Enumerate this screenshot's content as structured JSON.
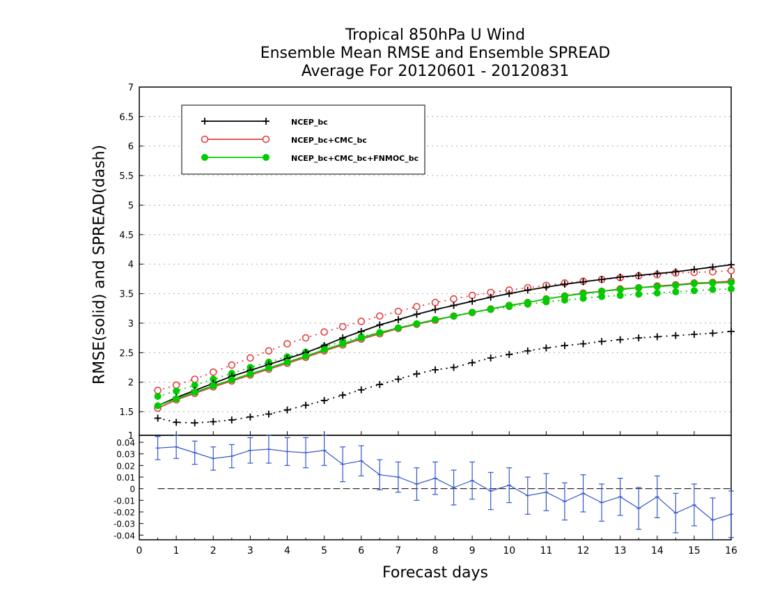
{
  "chart_data": {
    "type": "line",
    "title": [
      "Tropical 850hPa U Wind",
      "Ensemble Mean RMSE and Ensemble SPREAD",
      "Average For 20120601 - 20120831"
    ],
    "xlabel": "Forecast days",
    "ylabel": "RMSE(solid) and SPREAD(dash)",
    "xlim": [
      0,
      16
    ],
    "x_ticks": [
      "0",
      "1",
      "2",
      "3",
      "4",
      "5",
      "6",
      "7",
      "8",
      "9",
      "10",
      "11",
      "12",
      "13",
      "14",
      "15",
      "16"
    ],
    "grid": true,
    "legend_placement": "top-left",
    "x": [
      0.5,
      1,
      1.5,
      2,
      2.5,
      3,
      3.5,
      4,
      4.5,
      5,
      5.5,
      6,
      6.5,
      7,
      7.5,
      8,
      8.5,
      9,
      9.5,
      10,
      10.5,
      11,
      11.5,
      12,
      12.5,
      13,
      13.5,
      14,
      14.5,
      15,
      15.5,
      16
    ],
    "main_panel": {
      "ylim": [
        1.1,
        7
      ],
      "y_ticks": [
        "1.5",
        "2",
        "2.5",
        "3",
        "3.5",
        "4",
        "4.5",
        "5",
        "5.5",
        "6",
        "6.5",
        "7"
      ],
      "series": [
        {
          "name": "NCEP_bc",
          "style": "solid",
          "color": "#000000",
          "marker": "plus",
          "values": [
            1.6,
            1.74,
            1.86,
            1.98,
            2.1,
            2.2,
            2.3,
            2.4,
            2.5,
            2.62,
            2.75,
            2.86,
            2.97,
            3.06,
            3.15,
            3.23,
            3.3,
            3.37,
            3.44,
            3.5,
            3.56,
            3.61,
            3.66,
            3.7,
            3.74,
            3.78,
            3.81,
            3.84,
            3.87,
            3.91,
            3.95,
            3.99
          ]
        },
        {
          "name": "NCEP_bc+CMC_bc",
          "style": "solid",
          "color": "#e04040",
          "marker": "open-circle",
          "values": [
            1.56,
            1.7,
            1.81,
            1.92,
            2.02,
            2.12,
            2.22,
            2.32,
            2.42,
            2.53,
            2.63,
            2.73,
            2.82,
            2.91,
            2.98,
            3.05,
            3.12,
            3.18,
            3.24,
            3.3,
            3.35,
            3.41,
            3.46,
            3.51,
            3.54,
            3.58,
            3.6,
            3.63,
            3.65,
            3.68,
            3.69,
            3.71
          ]
        },
        {
          "name": "NCEP_bc+CMC_bc+FNMOC_bc",
          "style": "solid",
          "color": "#00cc00",
          "marker": "filled-circle",
          "values": [
            1.6,
            1.72,
            1.83,
            1.94,
            2.04,
            2.14,
            2.24,
            2.34,
            2.44,
            2.55,
            2.65,
            2.75,
            2.84,
            2.92,
            2.99,
            3.06,
            3.12,
            3.18,
            3.24,
            3.3,
            3.35,
            3.41,
            3.46,
            3.5,
            3.54,
            3.57,
            3.6,
            3.62,
            3.64,
            3.67,
            3.68,
            3.69
          ]
        },
        {
          "name": "NCEP_bc spread",
          "style": "dotted",
          "color": "#000000",
          "marker": "plus",
          "values": [
            1.39,
            1.32,
            1.31,
            1.33,
            1.36,
            1.41,
            1.46,
            1.53,
            1.61,
            1.69,
            1.78,
            1.87,
            1.96,
            2.05,
            2.14,
            2.21,
            2.25,
            2.33,
            2.41,
            2.47,
            2.53,
            2.58,
            2.62,
            2.65,
            2.69,
            2.72,
            2.75,
            2.77,
            2.79,
            2.81,
            2.83,
            2.86
          ]
        },
        {
          "name": "NCEP_bc+CMC_bc spread",
          "style": "dotted",
          "color": "#e04040",
          "marker": "open-circle",
          "values": [
            1.86,
            1.95,
            2.05,
            2.17,
            2.29,
            2.41,
            2.53,
            2.65,
            2.75,
            2.85,
            2.94,
            3.03,
            3.12,
            3.2,
            3.28,
            3.35,
            3.41,
            3.47,
            3.52,
            3.56,
            3.6,
            3.64,
            3.68,
            3.71,
            3.74,
            3.77,
            3.8,
            3.82,
            3.85,
            3.86,
            3.87,
            3.89
          ]
        },
        {
          "name": "NCEP_bc+CMC_bc+FNMOC_bc spread",
          "style": "dotted",
          "color": "#00cc00",
          "marker": "filled-circle",
          "values": [
            1.76,
            1.85,
            1.95,
            2.05,
            2.15,
            2.25,
            2.34,
            2.43,
            2.51,
            2.6,
            2.69,
            2.77,
            2.84,
            2.92,
            2.99,
            3.06,
            3.12,
            3.18,
            3.23,
            3.28,
            3.32,
            3.36,
            3.39,
            3.42,
            3.45,
            3.47,
            3.49,
            3.51,
            3.53,
            3.55,
            3.57,
            3.58
          ]
        }
      ]
    },
    "difference_panel": {
      "ylim": [
        -0.044,
        0.046
      ],
      "y_ticks": [
        "-0.04",
        "-0.03",
        "-0.02",
        "-0.01",
        "0",
        "0.01",
        "0.02",
        "0.03",
        "0.04"
      ],
      "top_label": "1",
      "color": "#3355cc",
      "values": [
        0.035,
        0.036,
        0.031,
        0.026,
        0.028,
        0.033,
        0.034,
        0.032,
        0.031,
        0.033,
        0.021,
        0.024,
        0.012,
        0.01,
        0.004,
        0.009,
        0.001,
        0.007,
        -0.002,
        0.003,
        -0.006,
        -0.003,
        -0.011,
        -0.004,
        -0.012,
        -0.007,
        -0.017,
        -0.007,
        -0.021,
        -0.014,
        -0.027,
        -0.022
      ],
      "errors": [
        0.01,
        0.01,
        0.01,
        0.01,
        0.01,
        0.011,
        0.012,
        0.012,
        0.013,
        0.013,
        0.015,
        0.013,
        0.013,
        0.013,
        0.014,
        0.014,
        0.015,
        0.016,
        0.016,
        0.015,
        0.016,
        0.016,
        0.016,
        0.016,
        0.016,
        0.016,
        0.018,
        0.018,
        0.017,
        0.018,
        0.019,
        0.02
      ]
    }
  }
}
